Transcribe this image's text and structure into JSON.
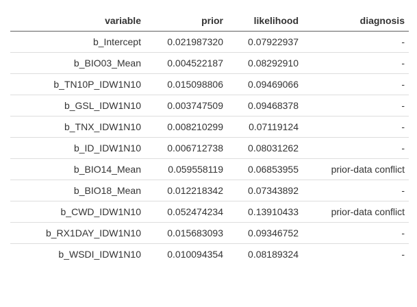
{
  "table": {
    "headers": [
      "variable",
      "prior",
      "likelihood",
      "diagnosis"
    ],
    "rows": [
      {
        "variable": "b_Intercept",
        "prior": "0.021987320",
        "likelihood": "0.07922937",
        "diagnosis": "-"
      },
      {
        "variable": "b_BIO03_Mean",
        "prior": "0.004522187",
        "likelihood": "0.08292910",
        "diagnosis": "-"
      },
      {
        "variable": "b_TN10P_IDW1N10",
        "prior": "0.015098806",
        "likelihood": "0.09469066",
        "diagnosis": "-"
      },
      {
        "variable": "b_GSL_IDW1N10",
        "prior": "0.003747509",
        "likelihood": "0.09468378",
        "diagnosis": "-"
      },
      {
        "variable": "b_TNX_IDW1N10",
        "prior": "0.008210299",
        "likelihood": "0.07119124",
        "diagnosis": "-"
      },
      {
        "variable": "b_ID_IDW1N10",
        "prior": "0.006712738",
        "likelihood": "0.08031262",
        "diagnosis": "-"
      },
      {
        "variable": "b_BIO14_Mean",
        "prior": "0.059558119",
        "likelihood": "0.06853955",
        "diagnosis": "prior-data conflict"
      },
      {
        "variable": "b_BIO18_Mean",
        "prior": "0.012218342",
        "likelihood": "0.07343892",
        "diagnosis": "-"
      },
      {
        "variable": "b_CWD_IDW1N10",
        "prior": "0.052474234",
        "likelihood": "0.13910433",
        "diagnosis": "prior-data conflict"
      },
      {
        "variable": "b_RX1DAY_IDW1N10",
        "prior": "0.015683093",
        "likelihood": "0.09346752",
        "diagnosis": "-"
      },
      {
        "variable": "b_WSDI_IDW1N10",
        "prior": "0.010094354",
        "likelihood": "0.08189324",
        "diagnosis": "-"
      }
    ]
  }
}
